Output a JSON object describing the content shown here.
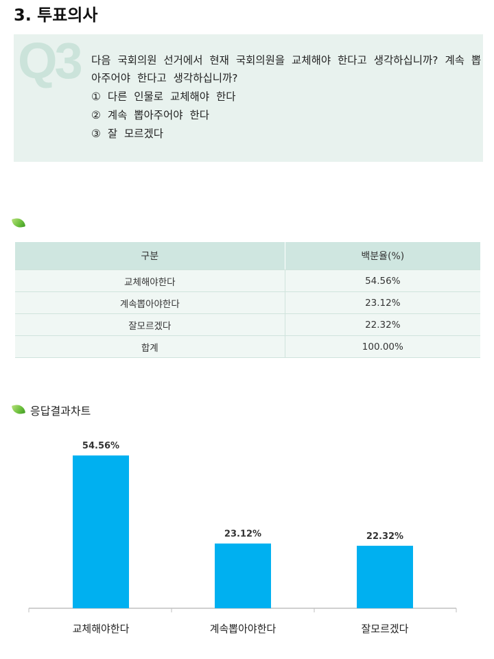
{
  "section_title": "3. 투표의사",
  "question": {
    "mark": "Q3",
    "text": "다음 국회의원 선거에서 현재 국회의원을 교체해야 한다고 생각하십니까? 계속 뽑아주어야 한다고 생각하십니까?",
    "options": [
      "① 다른 인물로 교체해야 한다",
      "② 계속 뽑아주어야 한다",
      "③ 잘 모르겠다"
    ]
  },
  "table": {
    "headers": [
      "구분",
      "백분율(%)"
    ],
    "rows": [
      [
        "교체해야한다",
        "54.56%"
      ],
      [
        "계속뽑아야한다",
        "23.12%"
      ],
      [
        "잘모르겠다",
        "22.32%"
      ],
      [
        "합계",
        "100.00%"
      ]
    ]
  },
  "chart_title": "응답결과차트",
  "colors": {
    "bar": "#00b0f0",
    "header_bg": "#cfe6e0",
    "box_bg": "#e8f2ee"
  },
  "chart_data": {
    "type": "bar",
    "categories": [
      "교체해야한다",
      "계속뽑아야한다",
      "잘모르겠다"
    ],
    "values": [
      54.56,
      23.12,
      22.32
    ],
    "value_labels": [
      "54.56%",
      "23.12%",
      "22.32%"
    ],
    "ylim": [
      0,
      60
    ],
    "grid": false
  }
}
